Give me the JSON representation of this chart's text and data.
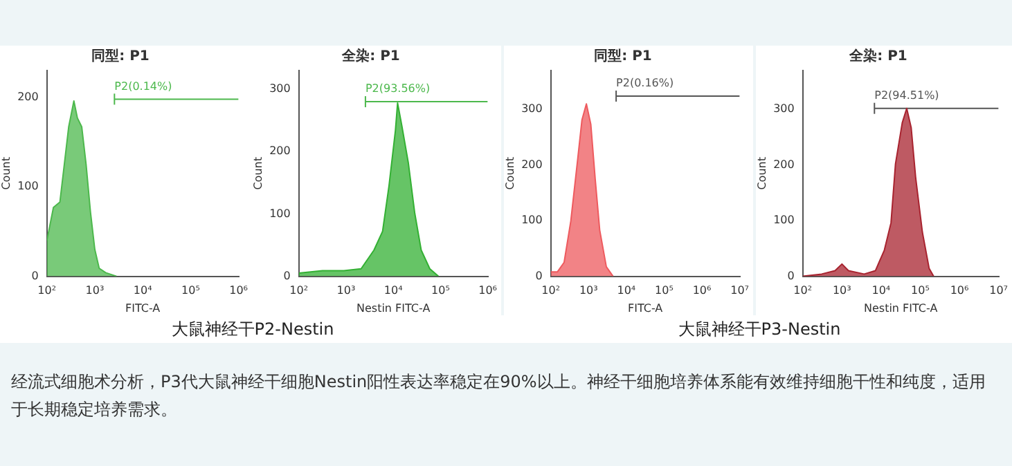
{
  "chart_data": [
    {
      "type": "area",
      "title": "同型: P1",
      "xlabel": "FITC-A",
      "ylabel": "Count",
      "log": "x",
      "grid": false,
      "legend": false,
      "marker": "none",
      "series": [
        {
          "color": "#4cb84c",
          "x": [
            100,
            137,
            187,
            231,
            285,
            366,
            433,
            534,
            658,
            811,
            1000,
            1233,
            1687,
            2851
          ],
          "values": [
            40,
            77,
            83,
            125,
            167,
            196,
            177,
            167,
            125,
            72,
            30,
            9,
            4,
            0
          ]
        },
        {
          "type": "line",
          "name": "P2(0.14%)",
          "color": "#4cb84c",
          "x": [
            2570,
            1000000
          ],
          "values": [
            198,
            198
          ]
        }
      ],
      "xlim": [
        100,
        1000000
      ],
      "xticks": [
        {
          "value": 100,
          "label": "10²"
        },
        {
          "value": 1000,
          "label": "10³"
        },
        {
          "value": 10000,
          "label": "10⁴"
        },
        {
          "value": 100000,
          "label": "10⁵"
        },
        {
          "value": 1000000,
          "label": "10⁶"
        }
      ],
      "ylim": [
        0,
        230
      ],
      "yticks": [
        0,
        100,
        200
      ]
    },
    {
      "type": "area",
      "title": "全染: P1",
      "xlabel": "Nestin FITC-A",
      "ylabel": "Count",
      "log": "x",
      "grid": false,
      "legend": false,
      "marker": "none",
      "series": [
        {
          "color": "#33b033",
          "x": [
            100,
            316,
            900,
            2080,
            3900,
            5930,
            8110,
            11100,
            12330,
            15200,
            20800,
            28500,
            39000,
            59300,
            90100
          ],
          "values": [
            5,
            9,
            9,
            12,
            42,
            72,
            145,
            234,
            278,
            241,
            182,
            101,
            42,
            12,
            0
          ]
        },
        {
          "type": "line",
          "name": "P2(93.56%)",
          "color": "#4cb84c",
          "x": [
            2570,
            1000000
          ],
          "values": [
            280,
            280
          ]
        }
      ],
      "xlim": [
        100,
        1000000
      ],
      "xticks": [
        {
          "value": 100,
          "label": "10²"
        },
        {
          "value": 1000,
          "label": "10³"
        },
        {
          "value": 10000,
          "label": "10⁴"
        },
        {
          "value": 100000,
          "label": "10⁵"
        },
        {
          "value": 1000000,
          "label": "10⁶"
        }
      ],
      "ylim": [
        0,
        330
      ],
      "yticks": [
        0,
        100,
        200,
        300
      ]
    },
    {
      "type": "area",
      "title": "同型: P1",
      "xlabel": "FITC-A",
      "ylabel": "Count",
      "log": "x",
      "grid": false,
      "legend": false,
      "marker": "none",
      "series": [
        {
          "color": "#ee5a5e",
          "x": [
            100,
            150,
            225,
            338,
            508,
            667,
            874,
            1146,
            1500,
            1970,
            2950,
            4440
          ],
          "values": [
            8,
            8,
            25,
            99,
            207,
            281,
            310,
            273,
            174,
            83,
            17,
            0
          ]
        },
        {
          "type": "line",
          "name": "P2(0.16%)",
          "color": "#555555",
          "x": [
            5360,
            10000000
          ],
          "values": [
            324,
            324
          ]
        }
      ],
      "xlim": [
        100,
        10000000
      ],
      "xticks": [
        {
          "value": 100,
          "label": "10²"
        },
        {
          "value": 1000,
          "label": "10³"
        },
        {
          "value": 10000,
          "label": "10⁴"
        },
        {
          "value": 100000,
          "label": "10⁵"
        },
        {
          "value": 1000000,
          "label": "10⁶"
        },
        {
          "value": 10000000,
          "label": "10⁷"
        }
      ],
      "ylim": [
        0,
        370
      ],
      "yticks": [
        0,
        100,
        200,
        300
      ]
    },
    {
      "type": "area",
      "title": "全染: P1",
      "xlabel": "Nestin FITC-A",
      "ylabel": "Count",
      "log": "x",
      "grid": false,
      "legend": false,
      "marker": "none",
      "series": [
        {
          "color": "#a8232f",
          "x": [
            100,
            303,
            667,
            1000,
            1470,
            3700,
            7150,
            12100,
            17900,
            23300,
            34700,
            45100,
            58700,
            76400,
            113500,
            168700,
            219000
          ],
          "values": [
            0,
            4,
            10,
            22,
            10,
            4,
            10,
            47,
            96,
            202,
            276,
            302,
            267,
            177,
            79,
            14,
            0
          ]
        },
        {
          "type": "line",
          "name": "P2(94.51%)",
          "color": "#555555",
          "x": [
            6760,
            10000000
          ],
          "values": [
            302,
            302
          ]
        }
      ],
      "xlim": [
        100,
        10000000
      ],
      "xticks": [
        {
          "value": 100,
          "label": "10²"
        },
        {
          "value": 1000,
          "label": "10³"
        },
        {
          "value": 10000,
          "label": "10⁴"
        },
        {
          "value": 100000,
          "label": "10⁵"
        },
        {
          "value": 1000000,
          "label": "10⁶"
        },
        {
          "value": 10000000,
          "label": "10⁷"
        }
      ],
      "ylim": [
        0,
        370
      ],
      "yticks": [
        0,
        100,
        200,
        300
      ]
    },
    {
      "type": "other",
      "annotations": [
        "大鼠神经干P2-Nestin",
        "大鼠神经干P3-Nestin",
        "经流式细胞术分析，P3代大鼠神经干细胞Nestin阳性表达率稳定在90%以上。神经干细胞培养体系能有效维持细胞干性和纯度，适用于长期稳定培养需求。"
      ]
    }
  ]
}
